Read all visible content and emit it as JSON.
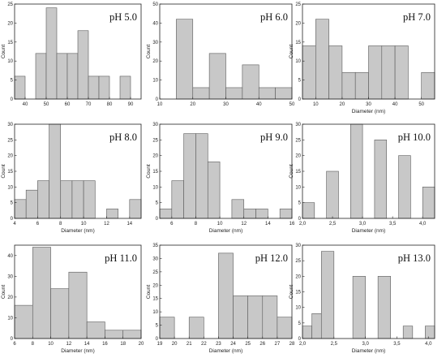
{
  "chart_data": [
    {
      "type": "bar",
      "title": "pH 5.0",
      "xlabel": "",
      "ylabel": "Count",
      "xlim": [
        35,
        95
      ],
      "ylim": [
        0,
        25
      ],
      "xticks": [
        40,
        50,
        60,
        70,
        80,
        90
      ],
      "yticks": [
        0,
        5,
        10,
        15,
        20,
        25
      ],
      "bins": [
        {
          "x0": 35,
          "x1": 40,
          "y": 6
        },
        {
          "x0": 45,
          "x1": 50,
          "y": 12
        },
        {
          "x0": 50,
          "x1": 55,
          "y": 24
        },
        {
          "x0": 55,
          "x1": 60,
          "y": 12
        },
        {
          "x0": 60,
          "x1": 65,
          "y": 12
        },
        {
          "x0": 65,
          "x1": 70,
          "y": 18
        },
        {
          "x0": 70,
          "x1": 75,
          "y": 6
        },
        {
          "x0": 75,
          "x1": 80,
          "y": 6
        },
        {
          "x0": 85,
          "x1": 90,
          "y": 6
        }
      ]
    },
    {
      "type": "bar",
      "title": "pH 6.0",
      "xlabel": "",
      "ylabel": "Count",
      "xlim": [
        10,
        50
      ],
      "ylim": [
        0,
        50
      ],
      "xticks": [
        10,
        20,
        30,
        40,
        50
      ],
      "yticks": [
        0,
        10,
        20,
        30,
        40,
        50
      ],
      "bins": [
        {
          "x0": 15,
          "x1": 20,
          "y": 42
        },
        {
          "x0": 20,
          "x1": 25,
          "y": 6
        },
        {
          "x0": 25,
          "x1": 30,
          "y": 24
        },
        {
          "x0": 30,
          "x1": 35,
          "y": 6
        },
        {
          "x0": 35,
          "x1": 40,
          "y": 18
        },
        {
          "x0": 40,
          "x1": 45,
          "y": 6
        },
        {
          "x0": 45,
          "x1": 50,
          "y": 6
        }
      ]
    },
    {
      "type": "bar",
      "title": "pH 7.0",
      "xlabel": "Diameter (nm)",
      "ylabel": "Count",
      "xlim": [
        5,
        55
      ],
      "ylim": [
        0,
        25
      ],
      "xticks": [
        10,
        20,
        30,
        40,
        50
      ],
      "yticks": [
        0,
        5,
        10,
        15,
        20,
        25
      ],
      "bins": [
        {
          "x0": 5,
          "x1": 10,
          "y": 14
        },
        {
          "x0": 10,
          "x1": 15,
          "y": 21
        },
        {
          "x0": 15,
          "x1": 20,
          "y": 14
        },
        {
          "x0": 20,
          "x1": 25,
          "y": 7
        },
        {
          "x0": 25,
          "x1": 30,
          "y": 7
        },
        {
          "x0": 30,
          "x1": 35,
          "y": 14
        },
        {
          "x0": 35,
          "x1": 40,
          "y": 14
        },
        {
          "x0": 40,
          "x1": 45,
          "y": 14
        },
        {
          "x0": 50,
          "x1": 55,
          "y": 7
        }
      ]
    },
    {
      "type": "bar",
      "title": "pH 8.0",
      "xlabel": "Diameter (nm)",
      "ylabel": "Count",
      "xlim": [
        4,
        15
      ],
      "ylim": [
        0,
        30
      ],
      "xticks": [
        4,
        6,
        8,
        10,
        12,
        14
      ],
      "yticks": [
        0,
        5,
        10,
        15,
        20,
        25,
        30
      ],
      "bins": [
        {
          "x0": 4,
          "x1": 5,
          "y": 6
        },
        {
          "x0": 5,
          "x1": 6,
          "y": 9
        },
        {
          "x0": 6,
          "x1": 7,
          "y": 12
        },
        {
          "x0": 7,
          "x1": 8,
          "y": 30
        },
        {
          "x0": 8,
          "x1": 9,
          "y": 12
        },
        {
          "x0": 9,
          "x1": 10,
          "y": 12
        },
        {
          "x0": 10,
          "x1": 11,
          "y": 12
        },
        {
          "x0": 12,
          "x1": 13,
          "y": 3
        },
        {
          "x0": 14,
          "x1": 15,
          "y": 6
        }
      ]
    },
    {
      "type": "bar",
      "title": "pH 9.0",
      "xlabel": "Diameter (nm)",
      "ylabel": "Count",
      "xlim": [
        5,
        16
      ],
      "ylim": [
        0,
        30
      ],
      "xticks": [
        6,
        8,
        10,
        12,
        14,
        16
      ],
      "yticks": [
        0,
        5,
        10,
        15,
        20,
        25,
        30
      ],
      "bins": [
        {
          "x0": 5,
          "x1": 6,
          "y": 3
        },
        {
          "x0": 6,
          "x1": 7,
          "y": 12
        },
        {
          "x0": 7,
          "x1": 8,
          "y": 27
        },
        {
          "x0": 8,
          "x1": 9,
          "y": 27
        },
        {
          "x0": 9,
          "x1": 10,
          "y": 18
        },
        {
          "x0": 11,
          "x1": 12,
          "y": 6
        },
        {
          "x0": 12,
          "x1": 13,
          "y": 3
        },
        {
          "x0": 13,
          "x1": 14,
          "y": 3
        },
        {
          "x0": 15,
          "x1": 16,
          "y": 3
        }
      ]
    },
    {
      "type": "bar",
      "title": "pH 10.0",
      "xlabel": "Diameter (nm)",
      "ylabel": "Count",
      "xlim": [
        2.0,
        4.2
      ],
      "ylim": [
        0,
        30
      ],
      "xticks": [
        "2,0",
        "2,5",
        "3,0",
        "3,5",
        "4,0"
      ],
      "xtick_values": [
        2.0,
        2.5,
        3.0,
        3.5,
        4.0
      ],
      "yticks": [
        0,
        5,
        10,
        15,
        20,
        25,
        30
      ],
      "bins": [
        {
          "x0": 2.0,
          "x1": 2.2,
          "y": 5
        },
        {
          "x0": 2.4,
          "x1": 2.6,
          "y": 15
        },
        {
          "x0": 2.8,
          "x1": 3.0,
          "y": 30
        },
        {
          "x0": 3.2,
          "x1": 3.4,
          "y": 25
        },
        {
          "x0": 3.6,
          "x1": 3.8,
          "y": 20
        },
        {
          "x0": 4.0,
          "x1": 4.2,
          "y": 10
        }
      ]
    },
    {
      "type": "bar",
      "title": "pH 11.0",
      "xlabel": "Diameter (nm)",
      "ylabel": "Count",
      "xlim": [
        6,
        20
      ],
      "ylim": [
        0,
        45
      ],
      "xticks": [
        6,
        8,
        10,
        12,
        14,
        16,
        18,
        20
      ],
      "yticks": [
        0,
        10,
        20,
        30,
        40
      ],
      "bins": [
        {
          "x0": 6,
          "x1": 8,
          "y": 16
        },
        {
          "x0": 8,
          "x1": 10,
          "y": 44
        },
        {
          "x0": 10,
          "x1": 12,
          "y": 24
        },
        {
          "x0": 12,
          "x1": 14,
          "y": 32
        },
        {
          "x0": 14,
          "x1": 16,
          "y": 8
        },
        {
          "x0": 16,
          "x1": 18,
          "y": 4
        },
        {
          "x0": 18,
          "x1": 20,
          "y": 4
        }
      ]
    },
    {
      "type": "bar",
      "title": "pH 12.0",
      "xlabel": "Diameter (nm)",
      "ylabel": "Count",
      "xlim": [
        19,
        28
      ],
      "ylim": [
        0,
        35
      ],
      "xticks": [
        19,
        20,
        21,
        22,
        23,
        24,
        25,
        26,
        27,
        28
      ],
      "yticks": [
        0,
        5,
        10,
        15,
        20,
        25,
        30,
        35
      ],
      "bins": [
        {
          "x0": 19,
          "x1": 20,
          "y": 8
        },
        {
          "x0": 21,
          "x1": 22,
          "y": 8
        },
        {
          "x0": 23,
          "x1": 24,
          "y": 32
        },
        {
          "x0": 24,
          "x1": 25,
          "y": 16
        },
        {
          "x0": 25,
          "x1": 26,
          "y": 16
        },
        {
          "x0": 26,
          "x1": 27,
          "y": 16
        },
        {
          "x0": 27,
          "x1": 28,
          "y": 8
        }
      ]
    },
    {
      "type": "bar",
      "title": "pH 13.0",
      "xlabel": "Diameter (nm)",
      "ylabel": "Count",
      "xlim": [
        2.0,
        4.1
      ],
      "ylim": [
        0,
        30
      ],
      "xticks": [
        "2,0",
        "2,5",
        "3,0",
        "3,5",
        "4,0"
      ],
      "xtick_values": [
        2.0,
        2.5,
        3.0,
        3.5,
        4.0
      ],
      "yticks": [
        0,
        5,
        10,
        15,
        20,
        25,
        30
      ],
      "bins": [
        {
          "x0": 2.0,
          "x1": 2.15,
          "y": 4
        },
        {
          "x0": 2.15,
          "x1": 2.3,
          "y": 8
        },
        {
          "x0": 2.3,
          "x1": 2.5,
          "y": 28
        },
        {
          "x0": 2.8,
          "x1": 3.0,
          "y": 20
        },
        {
          "x0": 3.2,
          "x1": 3.4,
          "y": 20
        },
        {
          "x0": 3.6,
          "x1": 3.75,
          "y": 4
        },
        {
          "x0": 3.95,
          "x1": 4.1,
          "y": 4
        }
      ]
    }
  ],
  "colors": {
    "bar_fill": "#c8c8c8",
    "bar_stroke": "#5a5a5a",
    "axis": "#222222",
    "background": "#ffffff"
  }
}
